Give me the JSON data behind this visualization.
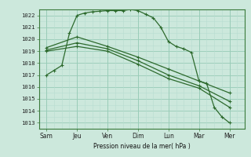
{
  "background_color": "#cce8dc",
  "grid_color_major": "#99ccb8",
  "grid_color_minor": "#b8ddd0",
  "line_color": "#2d6a2d",
  "x_labels": [
    "Sam",
    "Jeu",
    "Ven",
    "Dim",
    "Lun",
    "Mar",
    "Mer"
  ],
  "x_major_positions": [
    0,
    2,
    4,
    6,
    8,
    10,
    12
  ],
  "ylabel": "Pression niveau de la mer( hPa )",
  "ylim": [
    1012.5,
    1022.5
  ],
  "yticks": [
    1013,
    1014,
    1015,
    1016,
    1017,
    1018,
    1019,
    1020,
    1021,
    1022
  ],
  "xlim": [
    -0.5,
    13.0
  ],
  "series": [
    {
      "x": [
        0,
        0.5,
        1,
        1.5,
        2,
        2.5,
        3,
        3.5,
        4,
        4.5,
        5,
        5.5,
        6,
        6.5,
        7,
        7.5,
        8,
        8.5,
        9,
        9.5,
        10,
        10.5,
        11,
        11.5,
        12
      ],
      "y": [
        1017.0,
        1017.4,
        1017.8,
        1020.5,
        1022.0,
        1022.2,
        1022.3,
        1022.35,
        1022.4,
        1022.4,
        1022.4,
        1022.5,
        1022.4,
        1022.1,
        1021.8,
        1021.0,
        1019.8,
        1019.4,
        1019.2,
        1018.9,
        1016.5,
        1016.3,
        1014.3,
        1013.5,
        1013.0
      ]
    },
    {
      "x": [
        0,
        2,
        4,
        6,
        8,
        10,
        12
      ],
      "y": [
        1019.3,
        1020.2,
        1019.4,
        1018.5,
        1017.5,
        1016.5,
        1015.5
      ]
    },
    {
      "x": [
        0,
        2,
        4,
        6,
        8,
        10,
        12
      ],
      "y": [
        1019.1,
        1019.7,
        1019.2,
        1018.2,
        1017.0,
        1016.1,
        1014.8
      ]
    },
    {
      "x": [
        0,
        2,
        4,
        6,
        8,
        10,
        12
      ],
      "y": [
        1019.0,
        1019.4,
        1019.0,
        1017.9,
        1016.7,
        1015.9,
        1014.3
      ]
    }
  ]
}
